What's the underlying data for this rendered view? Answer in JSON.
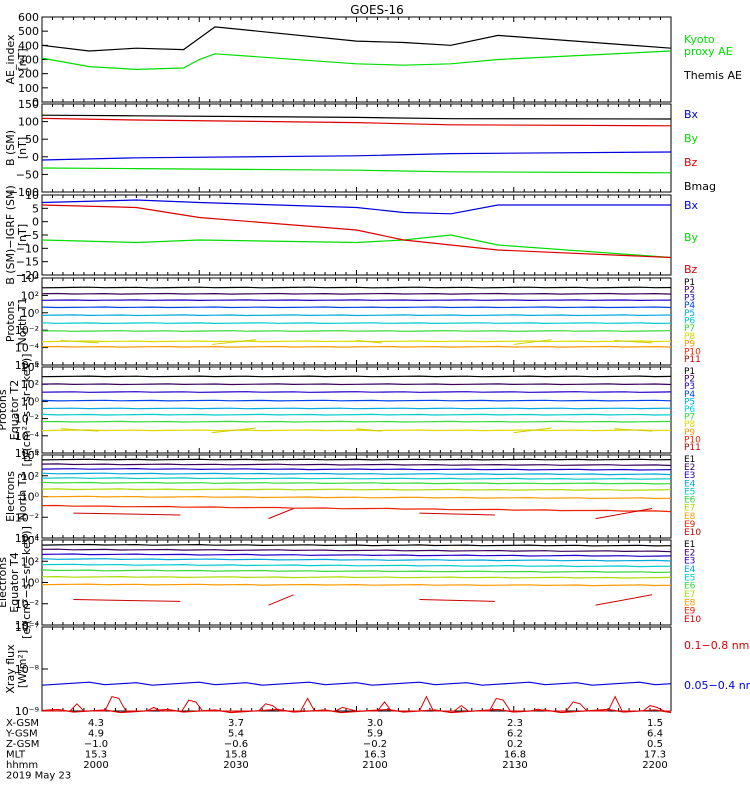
{
  "title": "GOES-16",
  "colors": {
    "black": "#000000",
    "red": "#dd0000",
    "green": "#00dd00",
    "blue": "#0000dd"
  },
  "panels": [
    {
      "id": "ae",
      "ylabel": [
        "AE_index",
        "[nT]"
      ],
      "ticks": [
        "600",
        "500",
        "400",
        "300",
        "200",
        "100",
        "0"
      ],
      "legend": [
        {
          "text": "Kyoto",
          "color": "#00dd00"
        },
        {
          "text": "proxy AE",
          "color": "#00dd00"
        },
        {
          "text": "Themis AE",
          "color": "#000000"
        }
      ]
    },
    {
      "id": "bsm",
      "ylabel": [
        "B (SM)",
        "[nT]"
      ],
      "ticks": [
        "150",
        "100",
        "50",
        "0",
        "−50",
        "−100"
      ],
      "legend": [
        {
          "text": "Bx",
          "color": "#0000dd"
        },
        {
          "text": "By",
          "color": "#00dd00"
        },
        {
          "text": "Bz",
          "color": "#dd0000"
        },
        {
          "text": "Bmag",
          "color": "#000000"
        }
      ]
    },
    {
      "id": "bigrf",
      "ylabel": [
        "B (SM)−IGRF (SM)",
        "[nT]"
      ],
      "ticks": [
        "10",
        "5",
        "0",
        "−5",
        "−10",
        "−15",
        "−20"
      ],
      "legend": [
        {
          "text": "Bx",
          "color": "#0000dd"
        },
        {
          "text": "By",
          "color": "#00dd00"
        },
        {
          "text": "Bz",
          "color": "#dd0000"
        }
      ]
    },
    {
      "id": "p_north",
      "ylabel": [
        "Protons",
        "North T1"
      ],
      "ticks": [
        "10⁴",
        "10²",
        "10⁰",
        "10⁻²",
        "10⁻⁴",
        "10⁻⁶"
      ],
      "legend": [
        {
          "text": "P1",
          "color": "#000000"
        },
        {
          "text": "P2",
          "color": "#3a005a"
        },
        {
          "text": "P3",
          "color": "#2200cc"
        },
        {
          "text": "P4",
          "color": "#0044ee"
        },
        {
          "text": "P5",
          "color": "#00aadd"
        },
        {
          "text": "P6",
          "color": "#00cccc"
        },
        {
          "text": "P7",
          "color": "#33dd33"
        },
        {
          "text": "P8",
          "color": "#dddd00"
        },
        {
          "text": "P9",
          "color": "#ff9900"
        },
        {
          "text": "P10",
          "color": "#ee2200"
        },
        {
          "text": "P11",
          "color": "#cc0000"
        }
      ]
    },
    {
      "id": "p_equator",
      "ylabel": [
        "Protons",
        "Equator T2",
        "[p/(cm²−s−sr−keV)]"
      ],
      "ticks": [
        "10⁴",
        "10²",
        "10⁰",
        "10⁻²",
        "10⁻⁴",
        "10⁻⁶"
      ],
      "legend": [
        {
          "text": "P1",
          "color": "#000000"
        },
        {
          "text": "P2",
          "color": "#3a005a"
        },
        {
          "text": "P3",
          "color": "#2200cc"
        },
        {
          "text": "P4",
          "color": "#0044ee"
        },
        {
          "text": "P5",
          "color": "#00aadd"
        },
        {
          "text": "P6",
          "color": "#00cccc"
        },
        {
          "text": "P7",
          "color": "#33dd33"
        },
        {
          "text": "P8",
          "color": "#dddd00"
        },
        {
          "text": "P9",
          "color": "#ff9900"
        },
        {
          "text": "P10",
          "color": "#ee2200"
        },
        {
          "text": "P11",
          "color": "#cc0000"
        }
      ]
    },
    {
      "id": "e_north",
      "ylabel": [
        "Electrons",
        "North T3"
      ],
      "ticks": [
        "10⁴",
        "10²",
        "10⁰",
        "10⁻²",
        "10⁻⁴"
      ],
      "legend": [
        {
          "text": "E1",
          "color": "#000000"
        },
        {
          "text": "E2",
          "color": "#3a005a"
        },
        {
          "text": "E3",
          "color": "#2200cc"
        },
        {
          "text": "E4",
          "color": "#00aadd"
        },
        {
          "text": "E5",
          "color": "#00cccc"
        },
        {
          "text": "E6",
          "color": "#33dd33"
        },
        {
          "text": "E7",
          "color": "#aadd00"
        },
        {
          "text": "E8",
          "color": "#ff9900"
        },
        {
          "text": "E9",
          "color": "#ee2200"
        },
        {
          "text": "E10",
          "color": "#cc0000"
        }
      ]
    },
    {
      "id": "e_equator",
      "ylabel": [
        "Electrons",
        "Equator T4",
        "[e/(cm²−s−sr−keV)]"
      ],
      "ticks": [
        "10⁴",
        "10²",
        "10⁰",
        "10⁻²",
        "10⁻⁴"
      ],
      "legend": [
        {
          "text": "E1",
          "color": "#000000"
        },
        {
          "text": "E2",
          "color": "#3a005a"
        },
        {
          "text": "E3",
          "color": "#2200cc"
        },
        {
          "text": "E4",
          "color": "#00aadd"
        },
        {
          "text": "E5",
          "color": "#00cccc"
        },
        {
          "text": "E6",
          "color": "#33dd33"
        },
        {
          "text": "E7",
          "color": "#aadd00"
        },
        {
          "text": "E8",
          "color": "#ff9900"
        },
        {
          "text": "E9",
          "color": "#ee2200"
        },
        {
          "text": "E10",
          "color": "#cc0000"
        }
      ]
    },
    {
      "id": "xray",
      "ylabel": [
        "Xray flux",
        "[W/m²]"
      ],
      "ticks": [
        "10⁻⁷",
        "10⁻⁸",
        "10⁻⁹"
      ],
      "legend": [
        {
          "text": "0.1−0.8 nm",
          "color": "#dd0000"
        },
        {
          "text": "0.05−0.4 nm",
          "color": "#0000dd"
        }
      ]
    }
  ],
  "ephemeris": {
    "labels": [
      "X-GSM",
      "Y-GSM",
      "Z-GSM",
      "MLT",
      "hhmm",
      "2019 May 23"
    ],
    "columns": [
      [
        "4.3",
        "4.9",
        "−1.0",
        "15.3",
        "2000"
      ],
      [
        "3.7",
        "5.4",
        "−0.6",
        "15.8",
        "2030"
      ],
      [
        "3.0",
        "5.9",
        "−0.2",
        "16.3",
        "2100"
      ],
      [
        "2.3",
        "6.2",
        "0.2",
        "16.8",
        "2130"
      ],
      [
        "1.5",
        "6.4",
        "0.5",
        "17.3",
        "2200"
      ]
    ]
  },
  "chart_data": [
    {
      "type": "line",
      "panel": "ae",
      "x": [
        2000,
        2015,
        2030,
        2045,
        2050,
        2055,
        2100,
        2115,
        2130,
        2145,
        2200
      ],
      "xlabel": "",
      "ylabel": "AE_index [nT]",
      "ylim": [
        0,
        600
      ],
      "series": [
        {
          "name": "Themis AE",
          "color": "#000000",
          "values": [
            400,
            360,
            380,
            370,
            450,
            530,
            430,
            420,
            400,
            470,
            380
          ]
        },
        {
          "name": "Kyoto proxy AE",
          "color": "#00dd00",
          "values": [
            310,
            250,
            230,
            240,
            300,
            340,
            270,
            260,
            270,
            300,
            360
          ]
        }
      ]
    },
    {
      "type": "line",
      "panel": "bsm",
      "x": [
        2000,
        2030,
        2100,
        2130,
        2200
      ],
      "ylabel": "B (SM) [nT]",
      "ylim": [
        -125,
        150
      ],
      "series": [
        {
          "name": "Bx",
          "color": "#0000dd",
          "values": [
            -25,
            -18,
            -12,
            -5,
            0
          ]
        },
        {
          "name": "By",
          "color": "#00dd00",
          "values": [
            -50,
            -52,
            -57,
            -62,
            -65
          ]
        },
        {
          "name": "Bz",
          "color": "#dd0000",
          "values": [
            105,
            100,
            92,
            85,
            82
          ]
        },
        {
          "name": "Bmag",
          "color": "#000000",
          "values": [
            115,
            113,
            108,
            104,
            103
          ]
        }
      ]
    },
    {
      "type": "line",
      "panel": "bigrf",
      "x": [
        2000,
        2030,
        2050,
        2100,
        2115,
        2130,
        2145,
        2200
      ],
      "ylabel": "B (SM)−IGRF (SM) [nT]",
      "ylim": [
        -22,
        10
      ],
      "series": [
        {
          "name": "Bx",
          "color": "#0000dd",
          "values": [
            7,
            8,
            7,
            5,
            3,
            2.5,
            6,
            6
          ]
        },
        {
          "name": "By",
          "color": "#00dd00",
          "values": [
            -8,
            -9,
            -8,
            -9,
            -8,
            -6,
            -10,
            -15
          ]
        },
        {
          "name": "Bz",
          "color": "#dd0000",
          "values": [
            6,
            5,
            1,
            -4,
            -8,
            -10,
            -12,
            -15
          ]
        }
      ]
    },
    {
      "type": "line",
      "panel": "p_north",
      "x": [
        2000,
        2200
      ],
      "ylabel": "log10 flux",
      "ylim": [
        -6.5,
        4.5
      ],
      "series": [
        {
          "name": "P1",
          "color": "#000000",
          "values": [
            3.3,
            3.3
          ]
        },
        {
          "name": "P2",
          "color": "#3a005a",
          "values": [
            2.5,
            2.5
          ]
        },
        {
          "name": "P3",
          "color": "#2200cc",
          "values": [
            1.7,
            1.7
          ]
        },
        {
          "name": "P4",
          "color": "#0044ee",
          "values": [
            0.8,
            0.8
          ]
        },
        {
          "name": "P5",
          "color": "#00aadd",
          "values": [
            -0.2,
            -0.2
          ]
        },
        {
          "name": "P6",
          "color": "#00cccc",
          "values": [
            -1.2,
            -1.2
          ]
        },
        {
          "name": "P7",
          "color": "#33dd33",
          "values": [
            -2.2,
            -2.2
          ]
        },
        {
          "name": "P8",
          "color": "#dddd00",
          "values": [
            -3.5,
            -3.5
          ]
        },
        {
          "name": "P9",
          "color": "#ff9900",
          "values": [
            -4.2,
            -4.2
          ]
        }
      ]
    },
    {
      "type": "line",
      "panel": "p_equator",
      "x": [
        2000,
        2200
      ],
      "ylabel": "log10 flux",
      "ylim": [
        -6.5,
        4.5
      ],
      "series": [
        {
          "name": "P1",
          "color": "#000000",
          "values": [
            3.3,
            3.3
          ]
        },
        {
          "name": "P2",
          "color": "#3a005a",
          "values": [
            2.3,
            2.3
          ]
        },
        {
          "name": "P3",
          "color": "#2200cc",
          "values": [
            1.3,
            1.3
          ]
        },
        {
          "name": "P4",
          "color": "#0044ee",
          "values": [
            0.2,
            0.2
          ]
        },
        {
          "name": "P5",
          "color": "#00aadd",
          "values": [
            -0.8,
            -0.8
          ]
        },
        {
          "name": "P6",
          "color": "#00cccc",
          "values": [
            -1.6,
            -1.6
          ]
        },
        {
          "name": "P7",
          "color": "#33dd33",
          "values": [
            -2.5,
            -2.5
          ]
        },
        {
          "name": "P8",
          "color": "#dddd00",
          "values": [
            -3.6,
            -3.6
          ]
        }
      ]
    },
    {
      "type": "line",
      "panel": "e_north",
      "x": [
        2000,
        2200
      ],
      "ylabel": "log10 flux",
      "ylim": [
        -4.5,
        4.5
      ],
      "series": [
        {
          "name": "E1",
          "color": "#000000",
          "values": [
            4.0,
            4.0
          ]
        },
        {
          "name": "E2",
          "color": "#3a005a",
          "values": [
            3.5,
            3.4
          ]
        },
        {
          "name": "E3",
          "color": "#2200cc",
          "values": [
            3.0,
            2.9
          ]
        },
        {
          "name": "E4",
          "color": "#00aadd",
          "values": [
            2.5,
            2.4
          ]
        },
        {
          "name": "E5",
          "color": "#00cccc",
          "values": [
            2.0,
            1.9
          ]
        },
        {
          "name": "E6",
          "color": "#33dd33",
          "values": [
            1.5,
            1.4
          ]
        },
        {
          "name": "E7",
          "color": "#aadd00",
          "values": [
            0.8,
            0.7
          ]
        },
        {
          "name": "E8",
          "color": "#ff9900",
          "values": [
            0.0,
            -0.2
          ]
        },
        {
          "name": "E9",
          "color": "#ee2200",
          "values": [
            -1.0,
            -1.6
          ]
        }
      ]
    },
    {
      "type": "line",
      "panel": "e_equator",
      "x": [
        2000,
        2200
      ],
      "ylabel": "log10 flux",
      "ylim": [
        -4.5,
        4.5
      ],
      "series": [
        {
          "name": "E1",
          "color": "#000000",
          "values": [
            4.0,
            3.9
          ]
        },
        {
          "name": "E2",
          "color": "#3a005a",
          "values": [
            3.5,
            3.3
          ]
        },
        {
          "name": "E3",
          "color": "#2200cc",
          "values": [
            3.0,
            2.8
          ]
        },
        {
          "name": "E4",
          "color": "#00aadd",
          "values": [
            2.5,
            2.3
          ]
        },
        {
          "name": "E5",
          "color": "#00cccc",
          "values": [
            1.9,
            1.7
          ]
        },
        {
          "name": "E6",
          "color": "#33dd33",
          "values": [
            1.3,
            1.1
          ]
        },
        {
          "name": "E7",
          "color": "#aadd00",
          "values": [
            0.6,
            0.5
          ]
        },
        {
          "name": "E8",
          "color": "#ff9900",
          "values": [
            -0.2,
            -0.3
          ]
        }
      ]
    },
    {
      "type": "line",
      "panel": "xray",
      "x": [
        2000,
        2200
      ],
      "ylabel": "Xray flux [W/m²]",
      "ylim": [
        -9,
        -7
      ],
      "series": [
        {
          "name": "0.05−0.4 nm",
          "color": "#0000dd",
          "values": [
            -8.35,
            -8.35
          ]
        },
        {
          "name": "0.1−0.8 nm",
          "color": "#dd0000",
          "values": [
            -9.0,
            -9.0
          ]
        }
      ]
    }
  ]
}
